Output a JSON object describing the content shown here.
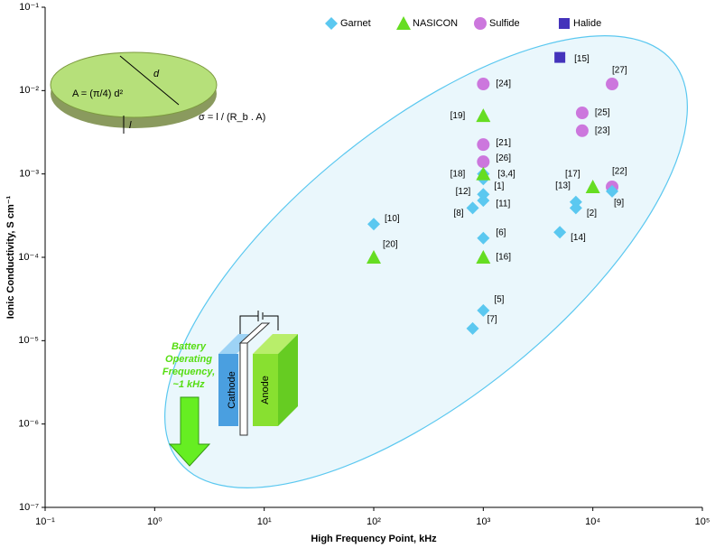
{
  "chart_data": {
    "type": "scatter",
    "x_label": "High Frequency Point, kHz",
    "y_label": "Ionic Conductivity, S cm⁻¹",
    "xscale": "log",
    "yscale": "log",
    "xlim": [
      0.1,
      100000
    ],
    "ylim": [
      1e-07,
      0.1
    ],
    "xticks": [
      {
        "value": 0.1,
        "label": "10⁻¹"
      },
      {
        "value": 1,
        "label": "10⁰"
      },
      {
        "value": 10,
        "label": "10¹"
      },
      {
        "value": 100,
        "label": "10²"
      },
      {
        "value": 1000,
        "label": "10³"
      },
      {
        "value": 10000,
        "label": "10⁴"
      },
      {
        "value": 100000,
        "label": "10⁵"
      }
    ],
    "yticks": [
      {
        "value": 1e-07,
        "label": "10⁻⁷"
      },
      {
        "value": 1e-06,
        "label": "10⁻⁶"
      },
      {
        "value": 1e-05,
        "label": "10⁻⁵"
      },
      {
        "value": 0.0001,
        "label": "10⁻⁴"
      },
      {
        "value": 0.001,
        "label": "10⁻³"
      },
      {
        "value": 0.01,
        "label": "10⁻²"
      },
      {
        "value": 0.1,
        "label": "10⁻¹"
      }
    ],
    "legend_position": "top",
    "series": [
      {
        "name": "Garnet",
        "color": "#5bc8f0",
        "marker": "diamond",
        "x": [
          100,
          1000,
          1000,
          1000,
          800,
          1000,
          1000,
          800,
          7000,
          7000,
          15000,
          5000,
          1000
        ],
        "values": [
          0.00025,
          0.00087,
          0.00057,
          0.00048,
          0.00039,
          0.00017,
          2.3e-05,
          1.4e-05,
          0.00046,
          0.00039,
          0.00062,
          0.0002,
          0.001
        ],
        "labels": [
          "[10]",
          "[1]",
          "[12]",
          "[11]",
          "[8]",
          "[6]",
          "[5]",
          "[7]",
          "[13]",
          "[2]",
          "[9]",
          "[14]",
          "[3,4]"
        ]
      },
      {
        "name": "NASICON",
        "color": "#66dd22",
        "marker": "triangle",
        "x": [
          1000,
          1000,
          100,
          1000,
          10000
        ],
        "values": [
          0.005,
          0.001,
          0.0001,
          0.0001,
          0.0007
        ],
        "labels": [
          "[19]",
          "[18]",
          "[20]",
          "[16]",
          "[17]"
        ]
      },
      {
        "name": "Sulfide",
        "color": "#cc77dd",
        "marker": "circle",
        "x": [
          1000,
          15000,
          8000,
          8000,
          1000,
          1000,
          15000
        ],
        "values": [
          0.012,
          0.012,
          0.0054,
          0.0033,
          0.00225,
          0.0014,
          0.0007
        ],
        "labels": [
          "[24]",
          "[27]",
          "[25]",
          "[23]",
          "[21]",
          "[26]",
          "[22]"
        ]
      },
      {
        "name": "Halide",
        "color": "#4433bb",
        "marker": "square",
        "x": [
          5000
        ],
        "values": [
          0.025
        ],
        "labels": [
          "[15]"
        ]
      }
    ],
    "annotations": {
      "battery_note": [
        "Battery",
        "Operating",
        "Frequency,",
        "~1 kHz"
      ],
      "cathode": "Cathode",
      "anode": "Anode",
      "diameter": "d",
      "thickness": "l",
      "area_formula": "A = (π/4) d²",
      "conductivity_formula": "σ = l / (R_b . A)"
    }
  }
}
